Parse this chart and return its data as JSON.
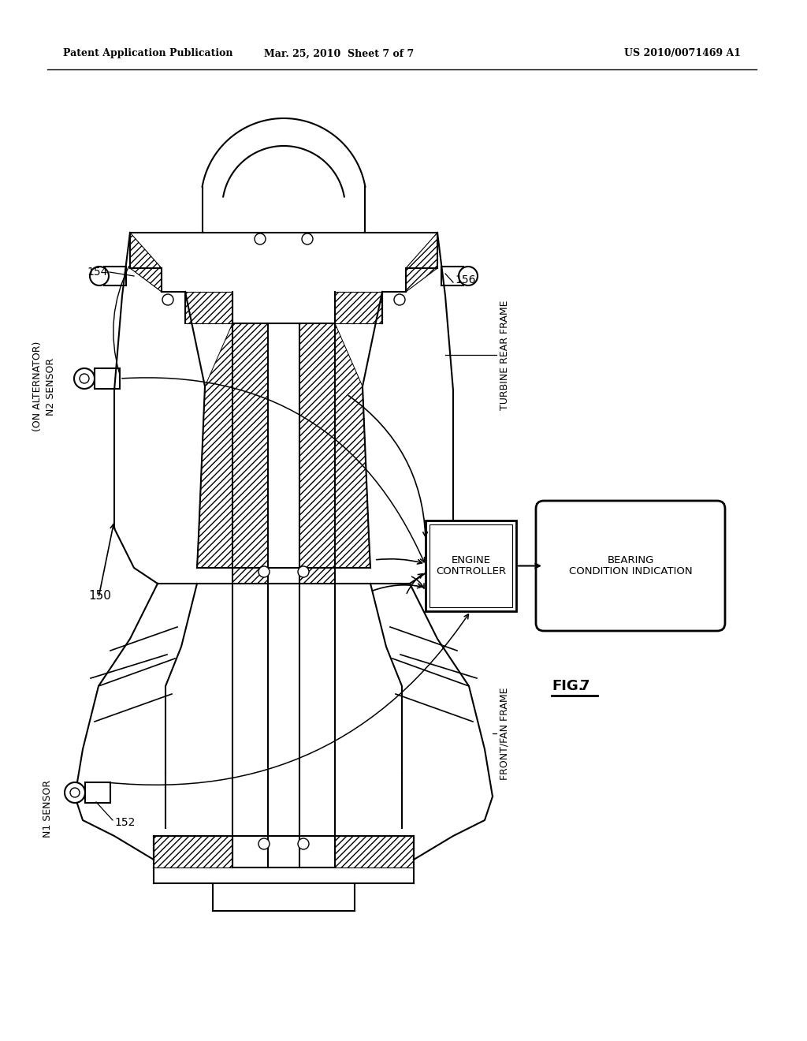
{
  "bg_color": "#ffffff",
  "line_color": "#000000",
  "header_left": "Patent Application Publication",
  "header_center": "Mar. 25, 2010  Sheet 7 of 7",
  "header_right": "US 2010/0071469 A1",
  "label_150": "150",
  "label_152": "152",
  "label_154": "154",
  "label_156": "156",
  "label_n1": "N1 SENSOR",
  "label_n2_l1": "N2 SENSOR",
  "label_n2_l2": "(ON ALTERNATOR)",
  "label_turbine": "TURBINE REAR FRAME",
  "label_front": "FRONT/FAN FRAME",
  "label_engine_l1": "ENGINE",
  "label_engine_l2": "CONTROLLER",
  "label_bearing_l1": "BEARING",
  "label_bearing_l2": "CONDITION INDICATION",
  "fig_label": "FIG.7"
}
